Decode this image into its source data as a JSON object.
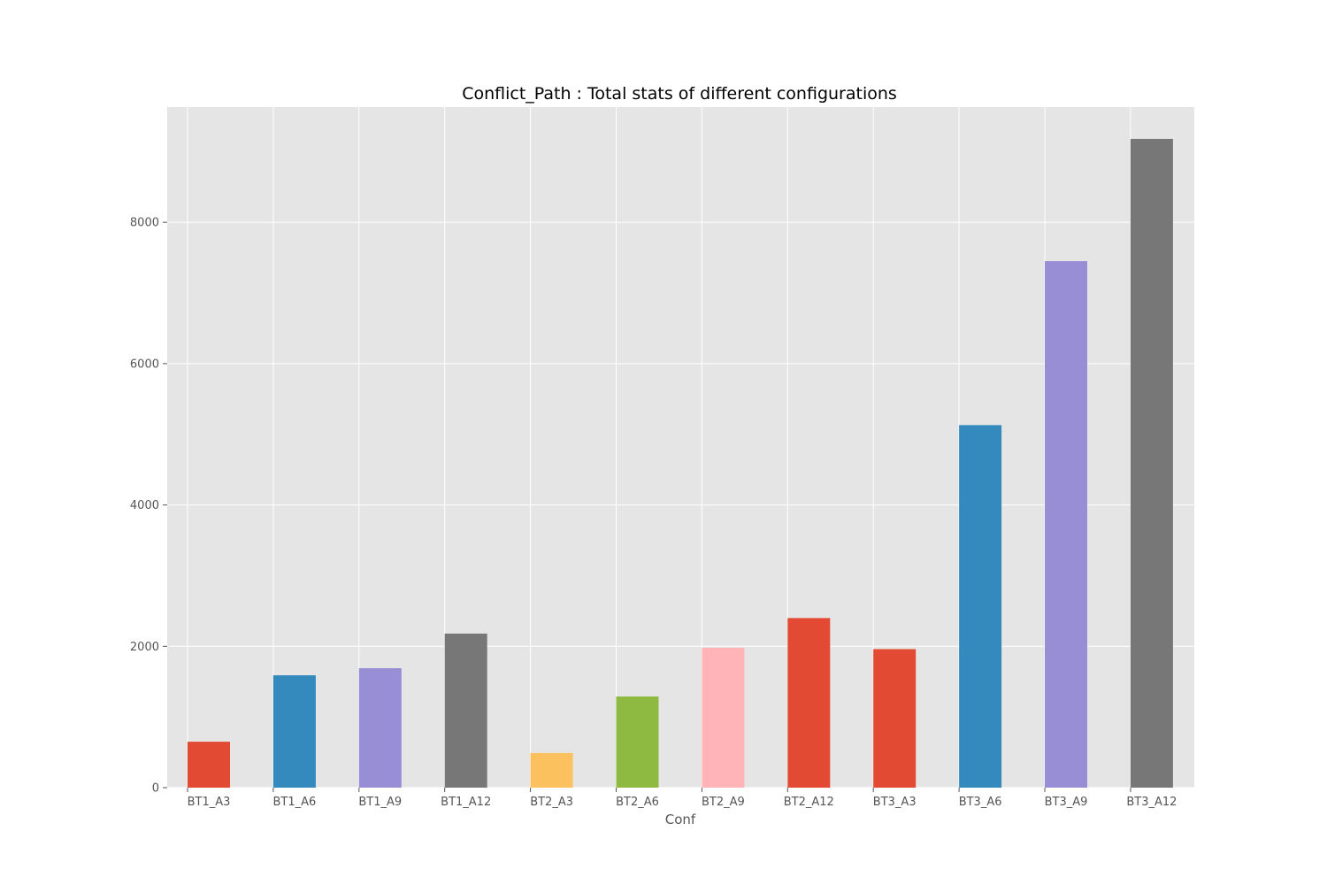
{
  "chart_data": {
    "type": "bar",
    "title": "Conflict_Path : Total stats of different configurations",
    "xlabel": "Conf",
    "ylabel": "",
    "categories": [
      "BT1_A3",
      "BT1_A6",
      "BT1_A9",
      "BT1_A12",
      "BT2_A3",
      "BT2_A6",
      "BT2_A9",
      "BT2_A12",
      "BT3_A3",
      "BT3_A6",
      "BT3_A9",
      "BT3_A12"
    ],
    "values": [
      650,
      1590,
      1690,
      2180,
      490,
      1290,
      1980,
      2400,
      1960,
      5130,
      7450,
      9180
    ],
    "bar_colors": [
      "#E24A33",
      "#348ABD",
      "#988ED5",
      "#777777",
      "#FBC15E",
      "#8EBA42",
      "#FFB5B8",
      "#E24A33",
      "#E24A33",
      "#348ABD",
      "#988ED5",
      "#777777"
    ],
    "ylim": [
      0,
      9630
    ],
    "yticks": [
      0,
      2000,
      4000,
      6000,
      8000
    ],
    "grid": true,
    "legend": "none",
    "style": {
      "plot_background": "#E5E5E5",
      "grid_color": "#FFFFFF",
      "tick_color": "#555555"
    }
  }
}
